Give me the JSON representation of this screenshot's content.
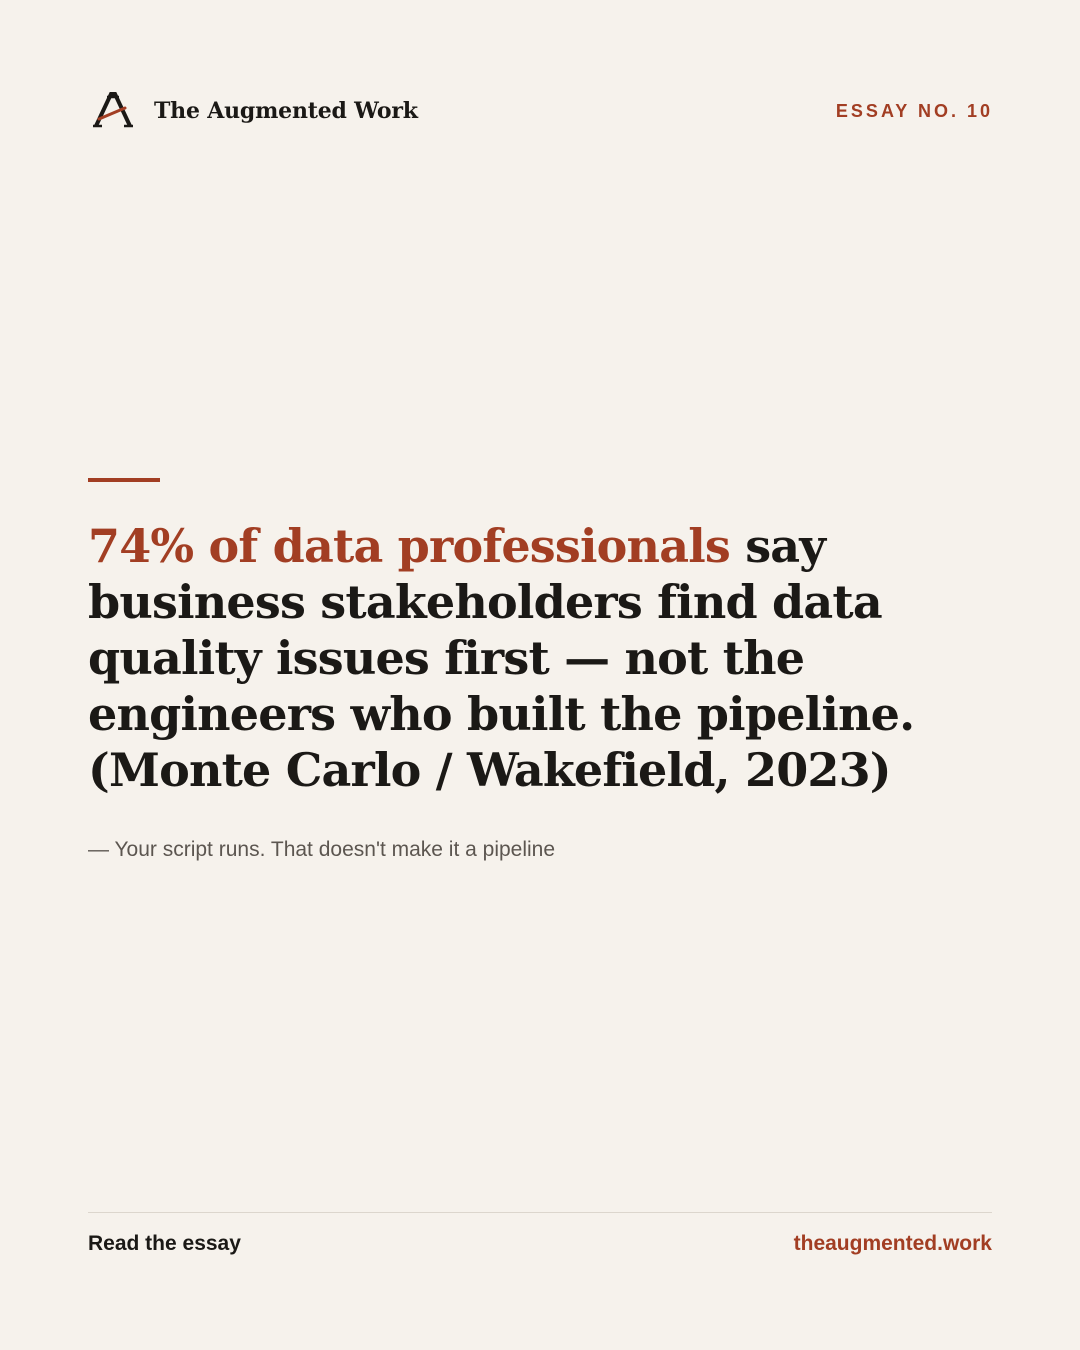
{
  "header": {
    "brand_name": "The Augmented Work",
    "logo_icon": "augmented-a-logo",
    "essay_label": "ESSAY NO. 10"
  },
  "quote": {
    "highlight": "74% of data professionals",
    "rest": " say business stakeholders find data quality issues first — not the engineers who built the pipeline. (Monte Carlo / Wakefield, 2023)",
    "attribution": "— Your script runs. That doesn't make it a pipeline"
  },
  "footer": {
    "cta": "Read the essay",
    "url": "theaugmented.work"
  },
  "colors": {
    "background": "#f6f2ec",
    "accent": "#a23e23",
    "text": "#1b1916",
    "muted": "#5c5650"
  }
}
